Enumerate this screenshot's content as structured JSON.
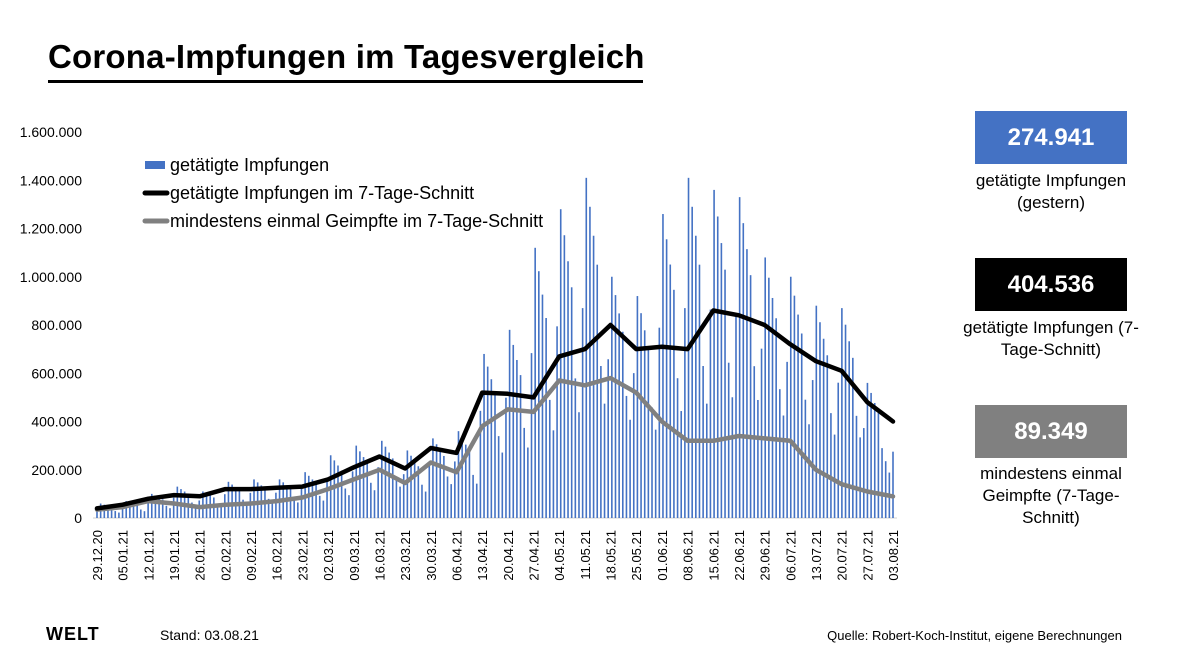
{
  "title": "Corona-Impfungen im Tagesvergleich",
  "stats": [
    {
      "value": "274.941",
      "label": "getätigte Impfungen (gestern)",
      "color": "#4472c4"
    },
    {
      "value": "404.536",
      "label": "getätigte Impfungen (7-Tage-Schnitt)",
      "color": "#000000"
    },
    {
      "value": "89.349",
      "label": "mindestens einmal Geimpfte (7-Tage-Schnitt)",
      "color": "#808080"
    }
  ],
  "footer": {
    "logo": "WELT",
    "stand_label": "Stand:",
    "stand_date": "03.08.21",
    "source": "Quelle: Robert-Koch-Institut, eigene Berechnungen"
  },
  "chart_data": {
    "type": "bar",
    "ylim": [
      0,
      1600000
    ],
    "yticks": [
      "0",
      "200.000",
      "400.000",
      "600.000",
      "800.000",
      "1.000.000",
      "1.200.000",
      "1.400.000",
      "1.600.000"
    ],
    "ytick_values": [
      0,
      200000,
      400000,
      600000,
      800000,
      1000000,
      1200000,
      1400000,
      1600000
    ],
    "xticks": [
      "29.12.20",
      "05.01.21",
      "12.01.21",
      "19.01.21",
      "26.01.21",
      "02.02.21",
      "09.02.21",
      "16.02.21",
      "23.02.21",
      "02.03.21",
      "09.03.21",
      "16.03.21",
      "23.03.21",
      "30.03.21",
      "06.04.21",
      "13.04.21",
      "20.04.21",
      "27.04.21",
      "04.05.21",
      "11.05.21",
      "18.05.21",
      "25.05.21",
      "01.06.21",
      "08.06.21",
      "15.06.21",
      "22.06.21",
      "29.06.21",
      "06.07.21",
      "13.07.21",
      "20.07.21",
      "27.07.21",
      "03.08.21"
    ],
    "legend": "top-left",
    "grid": false,
    "series": [
      {
        "name": "getätigte Impfungen",
        "kind": "bar",
        "color": "#4472c4"
      },
      {
        "name": "getätigte Impfungen im 7-Tage-Schnitt",
        "kind": "line",
        "color": "#000000"
      },
      {
        "name": "mindestens einmal Geimpfte im 7-Tage-Schnitt",
        "kind": "line",
        "color": "#808080"
      }
    ],
    "weekly_avg_total": [
      40000,
      55000,
      80000,
      95000,
      90000,
      120000,
      120000,
      125000,
      130000,
      160000,
      210000,
      255000,
      205000,
      290000,
      270000,
      520000,
      515000,
      500000,
      670000,
      700000,
      800000,
      700000,
      710000,
      700000,
      860000,
      840000,
      800000,
      720000,
      650000,
      610000,
      480000,
      400000
    ],
    "weekly_avg_first": [
      35000,
      45000,
      70000,
      60000,
      45000,
      55000,
      60000,
      70000,
      85000,
      120000,
      160000,
      200000,
      145000,
      230000,
      190000,
      380000,
      450000,
      440000,
      570000,
      550000,
      580000,
      520000,
      400000,
      320000,
      320000,
      340000,
      330000,
      320000,
      200000,
      140000,
      110000,
      89349
    ],
    "daily_peak_per_week": [
      60000,
      70000,
      100000,
      130000,
      110000,
      150000,
      160000,
      160000,
      190000,
      260000,
      300000,
      320000,
      280000,
      330000,
      360000,
      680000,
      780000,
      1120000,
      1280000,
      1410000,
      1000000,
      920000,
      1260000,
      1410000,
      1360000,
      1330000,
      1080000,
      1000000,
      880000,
      870000,
      560000,
      274941
    ]
  }
}
